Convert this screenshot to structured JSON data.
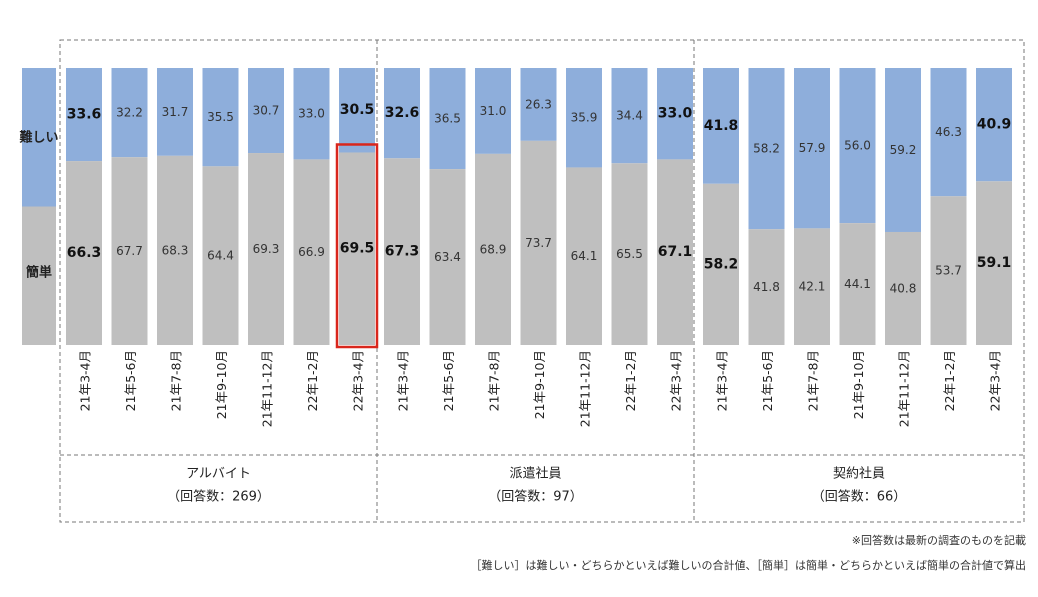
{
  "chart_data": {
    "type": "bar",
    "stacked": true,
    "percent_stacked": true,
    "legend_labels": {
      "top": "難しい",
      "bottom": "簡単"
    },
    "colors": {
      "difficult": "#8eaedb",
      "easy": "#bfbfbf",
      "highlight": "#d9261c",
      "border": "#6d6d6d"
    },
    "groups": [
      {
        "name": "アルバイト",
        "n_label": "（回答数：269）",
        "categories": [
          "21年3-4月",
          "21年5-6月",
          "21年7-8月",
          "21年9-10月",
          "21年11-12月",
          "22年1-2月",
          "22年3-4月"
        ],
        "difficult": [
          33.6,
          32.2,
          31.7,
          35.5,
          30.7,
          33.0,
          30.5
        ],
        "easy": [
          66.3,
          67.7,
          68.3,
          64.4,
          69.3,
          66.9,
          69.5
        ],
        "bold": [
          true,
          false,
          false,
          false,
          false,
          false,
          true
        ],
        "highlight_index": 6
      },
      {
        "name": "派遣社員",
        "n_label": "（回答数：97）",
        "categories": [
          "21年3-4月",
          "21年5-6月",
          "21年7-8月",
          "21年9-10月",
          "21年11-12月",
          "22年1-2月",
          "22年3-4月"
        ],
        "difficult": [
          32.6,
          36.5,
          31.0,
          26.3,
          35.9,
          34.4,
          33.0
        ],
        "easy": [
          67.3,
          63.4,
          68.9,
          73.7,
          64.1,
          65.5,
          67.1
        ],
        "bold": [
          true,
          false,
          false,
          false,
          false,
          false,
          true
        ],
        "highlight_index": -1
      },
      {
        "name": "契約社員",
        "n_label": "（回答数：66）",
        "categories": [
          "21年3-4月",
          "21年5-6月",
          "21年7-8月",
          "21年9-10月",
          "21年11-12月",
          "22年1-2月",
          "22年3-4月"
        ],
        "difficult": [
          41.8,
          58.2,
          57.9,
          56.0,
          59.2,
          46.3,
          40.9
        ],
        "easy": [
          58.2,
          41.8,
          42.1,
          44.1,
          40.8,
          53.7,
          59.1
        ],
        "bold": [
          true,
          false,
          false,
          false,
          false,
          false,
          true
        ],
        "highlight_index": -1
      }
    ]
  },
  "notes": {
    "line1": "※回答数は最新の調査のものを記載",
    "line2": "［難しい］は難しい・どちらかといえば難しいの合計値、［簡単］は簡単・どちらかといえば簡単の合計値で算出"
  }
}
